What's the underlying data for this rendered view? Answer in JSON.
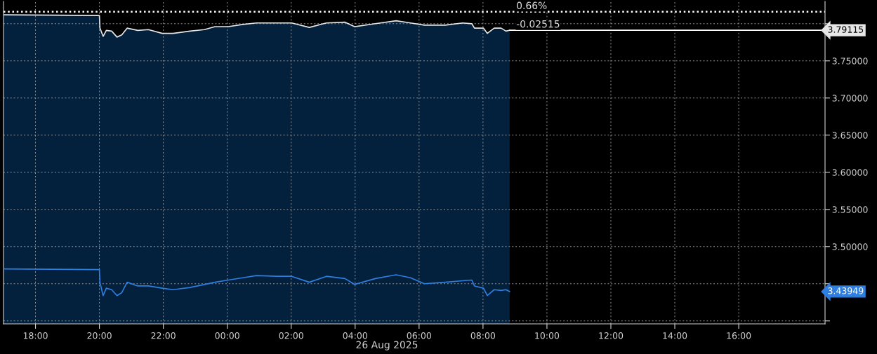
{
  "chart_data": {
    "type": "line",
    "x": [
      "2025-08-25T17:00",
      "2025-08-25T20:00",
      "2025-08-25T20:01",
      "2025-08-25T20:07",
      "2025-08-25T20:13",
      "2025-08-25T20:23",
      "2025-08-25T20:33",
      "2025-08-25T20:42",
      "2025-08-25T20:52",
      "2025-08-25T21:12",
      "2025-08-25T21:32",
      "2025-08-25T21:58",
      "2025-08-25T22:18",
      "2025-08-25T22:50",
      "2025-08-25T23:17",
      "2025-08-25T23:37",
      "2025-08-26T00:02",
      "2025-08-26T00:29",
      "2025-08-26T00:55",
      "2025-08-26T01:34",
      "2025-08-26T02:01",
      "2025-08-26T02:34",
      "2025-08-26T03:06",
      "2025-08-26T03:41",
      "2025-08-26T03:59",
      "2025-08-26T04:38",
      "2025-08-26T05:17",
      "2025-08-26T05:44",
      "2025-08-26T06:10",
      "2025-08-26T06:49",
      "2025-08-26T07:22",
      "2025-08-26T07:39",
      "2025-08-26T07:44",
      "2025-08-26T08:01",
      "2025-08-26T08:08",
      "2025-08-26T08:21",
      "2025-08-26T08:34",
      "2025-08-26T08:43",
      "2025-08-26T08:50"
    ],
    "series": [
      {
        "type": "area",
        "color": "#e6e6e6",
        "values": [
          3.812,
          3.811,
          3.794,
          3.783,
          3.791,
          3.79,
          3.782,
          3.785,
          3.794,
          3.791,
          3.792,
          3.787,
          3.787,
          3.79,
          3.792,
          3.796,
          3.796,
          3.799,
          3.801,
          3.801,
          3.801,
          3.795,
          3.801,
          3.802,
          3.796,
          3.8,
          3.804,
          3.801,
          3.798,
          3.798,
          3.801,
          3.8,
          3.794,
          3.794,
          3.787,
          3.794,
          3.794,
          3.79,
          3.79115
        ]
      },
      {
        "color": "#2f7fe0",
        "values": [
          3.47,
          3.469,
          3.452,
          3.434,
          3.444,
          3.442,
          3.434,
          3.438,
          3.452,
          3.447,
          3.447,
          3.444,
          3.442,
          3.445,
          3.449,
          3.452,
          3.455,
          3.458,
          3.461,
          3.46,
          3.46,
          3.452,
          3.46,
          3.457,
          3.449,
          3.457,
          3.462,
          3.458,
          3.45,
          3.452,
          3.454,
          3.455,
          3.447,
          3.444,
          3.434,
          3.442,
          3.441,
          3.442,
          3.43949
        ]
      }
    ],
    "xlim": [
      "2025-08-25T17:00",
      "2025-08-26T18:42"
    ],
    "xticks": [
      {
        "value": "2025-08-25T18:00",
        "label": "18:00"
      },
      {
        "value": "2025-08-25T20:00",
        "label": "20:00"
      },
      {
        "value": "2025-08-25T22:00",
        "label": "22:00"
      },
      {
        "value": "2025-08-26T00:00",
        "label": "00:00"
      },
      {
        "value": "2025-08-26T02:00",
        "label": "02:00"
      },
      {
        "value": "2025-08-26T04:00",
        "label": "04:00"
      },
      {
        "value": "2025-08-26T06:00",
        "label": "06:00"
      },
      {
        "value": "2025-08-26T08:00",
        "label": "08:00"
      },
      {
        "value": "2025-08-26T10:00",
        "label": "10:00"
      },
      {
        "value": "2025-08-26T12:00",
        "label": "12:00"
      },
      {
        "value": "2025-08-26T14:00",
        "label": "14:00"
      },
      {
        "value": "2025-08-26T16:00",
        "label": "16:00"
      }
    ],
    "ylim": [
      3.396,
      3.83
    ],
    "yticks": [
      {
        "value": 3.4,
        "label": null
      },
      {
        "value": 3.45,
        "label": null
      },
      {
        "value": 3.5,
        "label": "3.50000"
      },
      {
        "value": 3.55,
        "label": "3.55000"
      },
      {
        "value": 3.6,
        "label": "3.60000"
      },
      {
        "value": 3.65,
        "label": "3.65000"
      },
      {
        "value": 3.7,
        "label": "3.70000"
      },
      {
        "value": 3.75,
        "label": "3.75000"
      },
      {
        "value": 3.8,
        "label": null
      }
    ],
    "ref_lines": [
      {
        "axis": "y",
        "value": 3.816,
        "color": "#ffffff",
        "line_style": "dotted"
      },
      {
        "axis": "y",
        "value": 3.79115,
        "color": "#ffffff",
        "line_style": "solid"
      }
    ],
    "annotations": [
      "26 Aug 2025",
      "0.66%",
      "-0.02515",
      "3.79115",
      "3.43949"
    ],
    "grid": true,
    "line_style": "solid",
    "marker": "none"
  }
}
